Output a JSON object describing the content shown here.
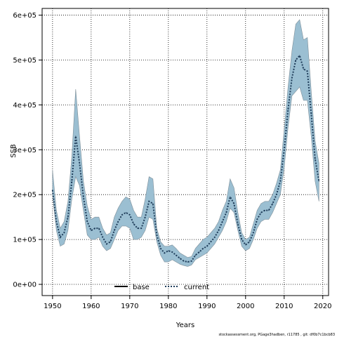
{
  "chart_data": {
    "type": "area",
    "xlabel": "Years",
    "ylabel": "SSB",
    "xlim": [
      1947.3,
      2021.5
    ],
    "ylim": [
      -25000,
      615000
    ],
    "x_ticks": [
      1950,
      1960,
      1970,
      1980,
      1990,
      2000,
      2010,
      2020
    ],
    "x_tick_labels": [
      "1950",
      "1960",
      "1970",
      "1980",
      "1990",
      "2000",
      "2010",
      "2020"
    ],
    "y_ticks": [
      0,
      100000,
      200000,
      300000,
      400000,
      500000,
      600000
    ],
    "y_tick_labels": [
      "0e+00",
      "1e+05",
      "2e+05",
      "3e+05",
      "4e+05",
      "5e+05",
      "6e+05"
    ],
    "grid": true,
    "legend_position": "bottom-center",
    "colors": {
      "band": "#9bbfd2",
      "band_edge": "#7f8f99",
      "current_line": "#1f3d5a",
      "base_line": "#000000",
      "grid": "#000000"
    },
    "series": [
      {
        "name": "base",
        "style": "solid",
        "x": [],
        "values": []
      },
      {
        "name": "current",
        "style": "dotted",
        "x": [
          1950,
          1951,
          1952,
          1953,
          1954,
          1955,
          1956,
          1957,
          1958,
          1959,
          1960,
          1961,
          1962,
          1963,
          1964,
          1965,
          1966,
          1967,
          1968,
          1969,
          1970,
          1971,
          1972,
          1973,
          1974,
          1975,
          1976,
          1977,
          1978,
          1979,
          1980,
          1981,
          1982,
          1983,
          1984,
          1985,
          1986,
          1987,
          1988,
          1989,
          1990,
          1991,
          1992,
          1993,
          1994,
          1995,
          1996,
          1997,
          1998,
          1999,
          2000,
          2001,
          2002,
          2003,
          2004,
          2005,
          2006,
          2007,
          2008,
          2009,
          2010,
          2011,
          2012,
          2013,
          2014,
          2015,
          2016,
          2017,
          2018,
          2019
        ],
        "values": [
          210000,
          140000,
          105000,
          115000,
          150000,
          230000,
          330000,
          270000,
          195000,
          140000,
          120000,
          125000,
          125000,
          105000,
          90000,
          95000,
          120000,
          140000,
          155000,
          160000,
          155000,
          135000,
          125000,
          125000,
          150000,
          185000,
          180000,
          110000,
          80000,
          70000,
          75000,
          72000,
          65000,
          58000,
          52000,
          50000,
          52000,
          65000,
          72000,
          80000,
          85000,
          95000,
          105000,
          120000,
          140000,
          160000,
          195000,
          180000,
          135000,
          100000,
          88000,
          95000,
          115000,
          145000,
          160000,
          165000,
          165000,
          180000,
          200000,
          230000,
          300000,
          390000,
          460000,
          500000,
          510000,
          480000,
          475000,
          380000,
          280000,
          230000
        ],
        "lower": [
          200000,
          120000,
          85000,
          90000,
          120000,
          190000,
          240000,
          220000,
          165000,
          110000,
          100000,
          100000,
          105000,
          85000,
          75000,
          80000,
          100000,
          120000,
          130000,
          130000,
          125000,
          100000,
          100000,
          105000,
          120000,
          150000,
          145000,
          95000,
          65000,
          50000,
          50000,
          55000,
          50000,
          45000,
          42000,
          40000,
          43000,
          55000,
          60000,
          65000,
          70000,
          80000,
          90000,
          105000,
          120000,
          140000,
          170000,
          160000,
          120000,
          85000,
          75000,
          80000,
          100000,
          125000,
          140000,
          145000,
          145000,
          160000,
          180000,
          200000,
          260000,
          350000,
          420000,
          430000,
          440000,
          410000,
          410000,
          330000,
          230000,
          185000
        ],
        "upper": [
          255000,
          165000,
          125000,
          140000,
          185000,
          285000,
          435000,
          330000,
          230000,
          175000,
          145000,
          150000,
          150000,
          125000,
          110000,
          115000,
          150000,
          170000,
          185000,
          195000,
          190000,
          165000,
          150000,
          150000,
          190000,
          240000,
          235000,
          125000,
          95000,
          85000,
          85000,
          88000,
          80000,
          70000,
          65000,
          60000,
          62000,
          80000,
          90000,
          100000,
          105000,
          115000,
          125000,
          140000,
          165000,
          185000,
          235000,
          215000,
          160000,
          115000,
          100000,
          105000,
          135000,
          165000,
          180000,
          185000,
          185000,
          200000,
          225000,
          255000,
          345000,
          440000,
          520000,
          580000,
          590000,
          545000,
          550000,
          430000,
          320000,
          270000
        ]
      }
    ],
    "footer": "stockassessment.org, PGage3hadben, r11785 , git: df0b7c1bcb83"
  }
}
